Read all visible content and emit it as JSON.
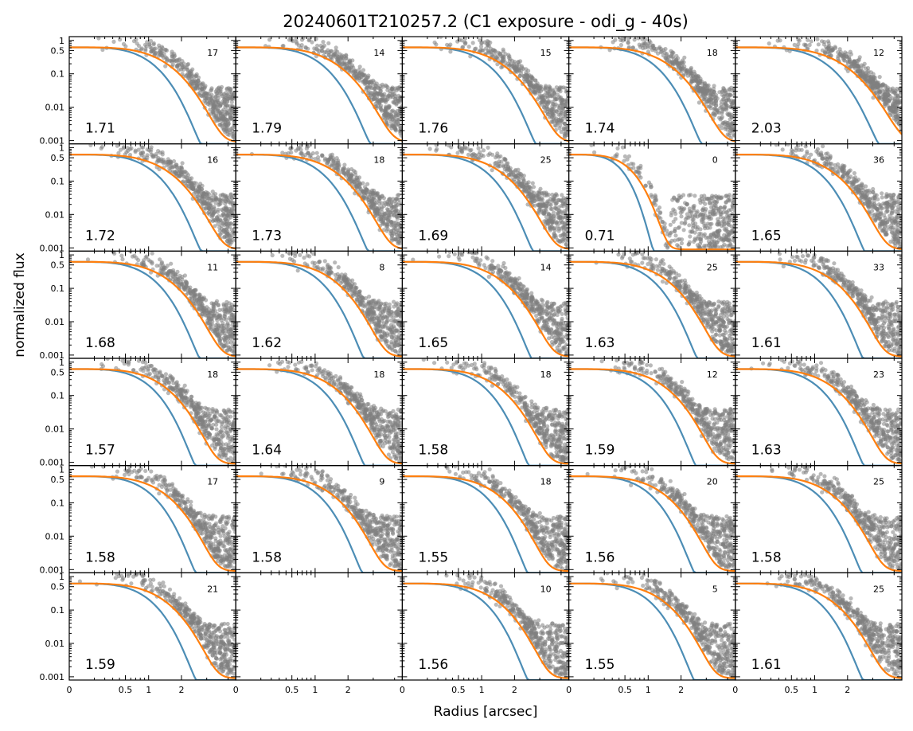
{
  "chart_data": {
    "type": "scatter",
    "title": "20240601T210257.2 (C1 exposure - odi_g - 40s)",
    "xlabel": "Radius [arcsec]",
    "ylabel": "normalized flux",
    "xscale": "sqrt",
    "yscale": "log",
    "xlim": [
      0,
      4.4
    ],
    "ylim": [
      0.0008,
      1.3
    ],
    "xticks": [
      "0",
      "0.5",
      "1",
      "2"
    ],
    "yticks": [
      "0.001",
      "0.01",
      "0.1",
      "0.5",
      "1"
    ],
    "series_colors": {
      "points": "#7f7f7f",
      "psf_fit_core": "#4c8db5",
      "psf_fit_outer": "#ff7f0e"
    },
    "grid": {
      "rows": 6,
      "cols": 5
    },
    "panels": [
      {
        "fwhm": "1.71",
        "n": "17"
      },
      {
        "fwhm": "1.79",
        "n": "14"
      },
      {
        "fwhm": "1.76",
        "n": "15"
      },
      {
        "fwhm": "1.74",
        "n": "18"
      },
      {
        "fwhm": "2.03",
        "n": "12"
      },
      {
        "fwhm": "1.72",
        "n": "16"
      },
      {
        "fwhm": "1.73",
        "n": "18"
      },
      {
        "fwhm": "1.69",
        "n": "25"
      },
      {
        "fwhm": "0.71",
        "n": "0"
      },
      {
        "fwhm": "1.65",
        "n": "36"
      },
      {
        "fwhm": "1.68",
        "n": "11"
      },
      {
        "fwhm": "1.62",
        "n": "8"
      },
      {
        "fwhm": "1.65",
        "n": "14"
      },
      {
        "fwhm": "1.63",
        "n": "25"
      },
      {
        "fwhm": "1.61",
        "n": "33"
      },
      {
        "fwhm": "1.57",
        "n": "18"
      },
      {
        "fwhm": "1.64",
        "n": "18"
      },
      {
        "fwhm": "1.58",
        "n": "18"
      },
      {
        "fwhm": "1.59",
        "n": "12"
      },
      {
        "fwhm": "1.63",
        "n": "23"
      },
      {
        "fwhm": "1.58",
        "n": "17"
      },
      {
        "fwhm": "1.58",
        "n": "9"
      },
      {
        "fwhm": "1.55",
        "n": "18"
      },
      {
        "fwhm": "1.56",
        "n": "20"
      },
      {
        "fwhm": "1.58",
        "n": "25"
      },
      {
        "fwhm": "1.59",
        "n": "21"
      },
      {
        "fwhm": "",
        "n": "",
        "empty": true
      },
      {
        "fwhm": "1.56",
        "n": "10"
      },
      {
        "fwhm": "1.55",
        "n": "5"
      },
      {
        "fwhm": "1.61",
        "n": "25"
      }
    ]
  }
}
